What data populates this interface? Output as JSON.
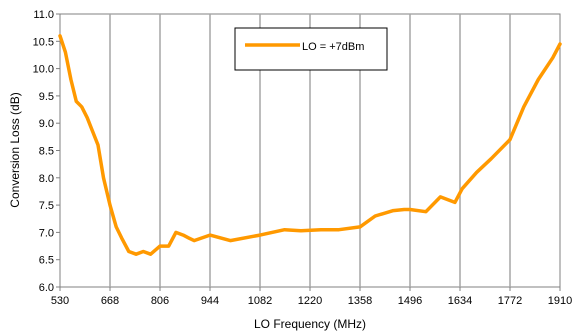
{
  "chart_data": {
    "type": "line",
    "title": "",
    "xlabel": "LO Frequency (MHz)",
    "ylabel": "Conversion Loss (dB)",
    "xlim": [
      530,
      1910
    ],
    "ylim": [
      6.0,
      11.0
    ],
    "xticks": [
      530,
      668,
      806,
      944,
      1082,
      1220,
      1358,
      1496,
      1634,
      1772,
      1910
    ],
    "xtick_labels": [
      "530",
      "668",
      "806",
      "944",
      "1082",
      "1220",
      "1358",
      "1496",
      "1634",
      "1772",
      "1910"
    ],
    "yticks": [
      6.0,
      6.5,
      7.0,
      7.5,
      8.0,
      8.5,
      9.0,
      9.5,
      10.0,
      10.5,
      11.0
    ],
    "ytick_labels": [
      "6.0",
      "6.5",
      "7.0",
      "7.5",
      "8.0",
      "8.5",
      "9.0",
      "9.5",
      "10.0",
      "10.5",
      "11.0"
    ],
    "grid": "vertical",
    "legend_position": "top-center",
    "series": [
      {
        "name": "LO = +7dBm",
        "color": "#FF9900",
        "x": [
          530,
          545,
          560,
          575,
          590,
          605,
          620,
          635,
          650,
          668,
          685,
          700,
          720,
          740,
          760,
          780,
          806,
          830,
          850,
          870,
          885,
          900,
          944,
          1000,
          1082,
          1150,
          1195,
          1250,
          1300,
          1358,
          1400,
          1450,
          1480,
          1496,
          1540,
          1580,
          1620,
          1640,
          1680,
          1720,
          1772,
          1810,
          1850,
          1890,
          1910
        ],
        "y": [
          10.6,
          10.3,
          9.8,
          9.4,
          9.3,
          9.1,
          8.85,
          8.6,
          8.0,
          7.5,
          7.1,
          6.9,
          6.65,
          6.6,
          6.65,
          6.6,
          6.75,
          6.75,
          7.0,
          6.95,
          6.9,
          6.85,
          6.95,
          6.85,
          6.95,
          7.05,
          7.03,
          7.05,
          7.05,
          7.1,
          7.3,
          7.4,
          7.42,
          7.42,
          7.38,
          7.65,
          7.55,
          7.8,
          8.1,
          8.35,
          8.7,
          9.3,
          9.8,
          10.2,
          10.45
        ]
      }
    ]
  }
}
